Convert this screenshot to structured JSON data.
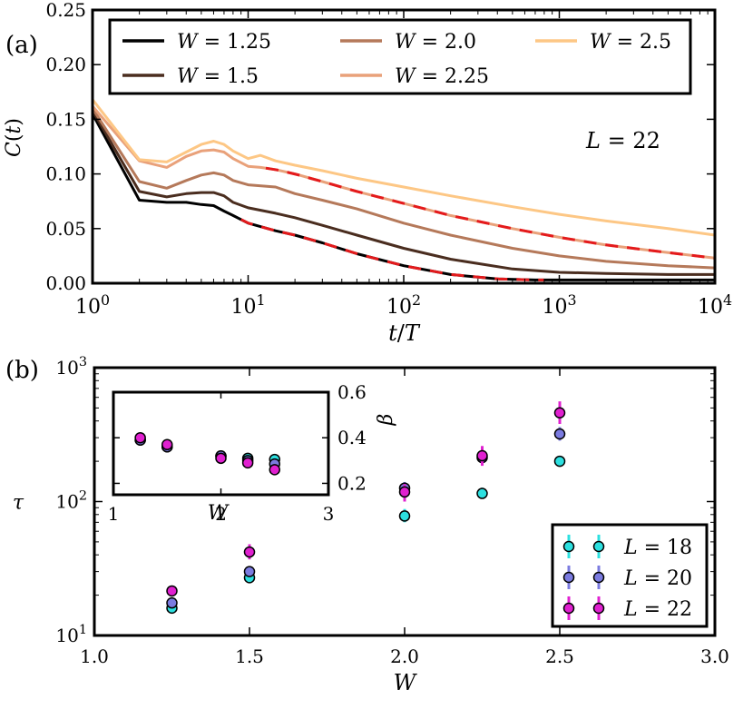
{
  "panel_labels": {
    "a": "(a)",
    "b": "(b)"
  },
  "chart_data": [
    {
      "id": "a",
      "type": "line",
      "title": "",
      "xlabel": "t/T",
      "ylabel": "C(t)",
      "xscale": "log",
      "xlim": [
        1,
        10000
      ],
      "ylim": [
        0,
        0.25
      ],
      "xticks": [
        {
          "v": 1,
          "base": "10",
          "exp": "0"
        },
        {
          "v": 10,
          "base": "10",
          "exp": "1"
        },
        {
          "v": 100,
          "base": "10",
          "exp": "2"
        },
        {
          "v": 1000,
          "base": "10",
          "exp": "3"
        },
        {
          "v": 10000,
          "base": "10",
          "exp": "4"
        }
      ],
      "yticks": [
        {
          "v": 0.0,
          "label": "0.00"
        },
        {
          "v": 0.05,
          "label": "0.05"
        },
        {
          "v": 0.1,
          "label": "0.10"
        },
        {
          "v": 0.15,
          "label": "0.15"
        },
        {
          "v": 0.2,
          "label": "0.20"
        },
        {
          "v": 0.25,
          "label": "0.25"
        }
      ],
      "annotation": "L = 22",
      "legend_position": "top",
      "fit_color": "#e41a1c",
      "series": [
        {
          "name": "W = 1.25",
          "color": "#000000",
          "x": [
            1,
            2,
            3,
            4,
            5,
            6,
            7,
            8,
            10,
            15,
            20,
            30,
            50,
            100,
            200,
            400,
            700,
            1000,
            2000,
            5000,
            10000
          ],
          "y": [
            0.155,
            0.076,
            0.074,
            0.074,
            0.072,
            0.071,
            0.066,
            0.062,
            0.055,
            0.048,
            0.044,
            0.037,
            0.027,
            0.016,
            0.008,
            0.004,
            0.003,
            0.003,
            0.003,
            0.003,
            0.003
          ],
          "fit_range": [
            9,
            800
          ]
        },
        {
          "name": "W = 1.5",
          "color": "#4a2d1f",
          "x": [
            1,
            2,
            3,
            4,
            5,
            6,
            7,
            8,
            10,
            15,
            20,
            30,
            50,
            100,
            200,
            500,
            1000,
            2000,
            5000,
            10000
          ],
          "y": [
            0.158,
            0.084,
            0.079,
            0.082,
            0.083,
            0.083,
            0.08,
            0.074,
            0.069,
            0.064,
            0.06,
            0.053,
            0.044,
            0.032,
            0.022,
            0.013,
            0.01,
            0.009,
            0.008,
            0.008
          ],
          "fit_range": null
        },
        {
          "name": "W = 2.0",
          "color": "#b5795a",
          "x": [
            1,
            2,
            3,
            4,
            5,
            6,
            7,
            8,
            10,
            15,
            20,
            30,
            50,
            100,
            200,
            500,
            1000,
            2000,
            5000,
            10000
          ],
          "y": [
            0.16,
            0.093,
            0.087,
            0.094,
            0.099,
            0.101,
            0.099,
            0.094,
            0.09,
            0.088,
            0.082,
            0.076,
            0.068,
            0.055,
            0.044,
            0.032,
            0.025,
            0.02,
            0.016,
            0.014
          ],
          "fit_range": null
        },
        {
          "name": "W = 2.25",
          "color": "#e9a17a",
          "x": [
            1,
            2,
            3,
            4,
            5,
            6,
            7,
            8,
            10,
            12,
            15,
            20,
            30,
            50,
            100,
            200,
            500,
            1000,
            2000,
            5000,
            10000
          ],
          "y": [
            0.162,
            0.112,
            0.106,
            0.116,
            0.121,
            0.122,
            0.12,
            0.114,
            0.107,
            0.106,
            0.104,
            0.1,
            0.093,
            0.084,
            0.073,
            0.062,
            0.05,
            0.042,
            0.035,
            0.028,
            0.023
          ],
          "fit_range": [
            13,
            10000
          ]
        },
        {
          "name": "W = 2.5",
          "color": "#fdc785",
          "x": [
            1,
            2,
            3,
            4,
            5,
            6,
            7,
            8,
            10,
            12,
            15,
            20,
            30,
            50,
            100,
            200,
            500,
            1000,
            2000,
            5000,
            10000
          ],
          "y": [
            0.168,
            0.113,
            0.111,
            0.12,
            0.127,
            0.13,
            0.127,
            0.121,
            0.114,
            0.117,
            0.112,
            0.108,
            0.103,
            0.096,
            0.088,
            0.08,
            0.07,
            0.063,
            0.057,
            0.05,
            0.044
          ],
          "fit_range": null
        }
      ]
    },
    {
      "id": "b",
      "type": "scatter",
      "xlabel": "W",
      "ylabel": "τ",
      "yscale": "log",
      "xlim": [
        1.0,
        3.0
      ],
      "ylim": [
        10,
        1000
      ],
      "xticks": [
        {
          "v": 1.0,
          "label": "1.0"
        },
        {
          "v": 1.5,
          "label": "1.5"
        },
        {
          "v": 2.0,
          "label": "2.0"
        },
        {
          "v": 2.5,
          "label": "2.5"
        },
        {
          "v": 3.0,
          "label": "3.0"
        }
      ],
      "yticks": [
        {
          "v": 10,
          "base": "10",
          "exp": "1"
        },
        {
          "v": 100,
          "base": "10",
          "exp": "2"
        },
        {
          "v": 1000,
          "base": "10",
          "exp": "3"
        }
      ],
      "legend_position": "bottom-right",
      "series": [
        {
          "name": "L = 18",
          "color": "#2de0e0",
          "x": [
            1.25,
            1.5,
            2.0,
            2.25,
            2.5
          ],
          "y": [
            16,
            27,
            78,
            115,
            200
          ],
          "err_lo": [
            15.5,
            25,
            70,
            105,
            190
          ],
          "err_hi": [
            16.5,
            29,
            88,
            127,
            212
          ]
        },
        {
          "name": "L = 20",
          "color": "#7b7be0",
          "x": [
            1.25,
            1.5,
            2.0,
            2.25,
            2.5
          ],
          "y": [
            17.5,
            30,
            126,
            213,
            320
          ],
          "err_lo": [
            17,
            28,
            110,
            190,
            285
          ],
          "err_hi": [
            18.5,
            33,
            140,
            240,
            360
          ]
        },
        {
          "name": "L = 22",
          "color": "#e020d0",
          "x": [
            1.25,
            1.5,
            2.0,
            2.25,
            2.5
          ],
          "y": [
            21.5,
            42,
            118,
            220,
            460
          ],
          "err_lo": [
            20.5,
            37,
            100,
            185,
            380
          ],
          "err_hi": [
            23,
            48,
            135,
            260,
            560
          ]
        }
      ],
      "inset": {
        "xlabel": "W",
        "ylabel": "β",
        "xlim": [
          1,
          3
        ],
        "ylim": [
          0.15,
          0.6
        ],
        "xticks": [
          {
            "v": 1,
            "label": "1"
          },
          {
            "v": 2,
            "label": "2"
          },
          {
            "v": 3,
            "label": "3"
          }
        ],
        "yticks": [
          {
            "v": 0.2,
            "label": "0.2"
          },
          {
            "v": 0.4,
            "label": "0.4"
          },
          {
            "v": 0.6,
            "label": "0.6"
          }
        ],
        "series": [
          {
            "name": "L = 18",
            "color": "#2de0e0",
            "x": [
              1.25,
              1.5,
              2.0,
              2.25,
              2.5
            ],
            "y": [
              0.39,
              0.36,
              0.32,
              0.31,
              0.305
            ]
          },
          {
            "name": "L = 20",
            "color": "#7b7be0",
            "x": [
              1.25,
              1.5,
              2.0,
              2.25,
              2.5
            ],
            "y": [
              0.39,
              0.36,
              0.32,
              0.3,
              0.285
            ]
          },
          {
            "name": "L = 22",
            "color": "#e020d0",
            "x": [
              1.25,
              1.5,
              2.0,
              2.25,
              2.5
            ],
            "y": [
              0.4,
              0.37,
              0.31,
              0.29,
              0.26
            ]
          }
        ]
      }
    }
  ]
}
